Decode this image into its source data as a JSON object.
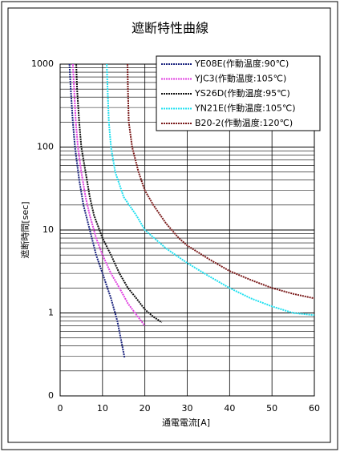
{
  "chart_data": {
    "type": "line",
    "title": "遮断特性曲線",
    "xlabel": "通電電流[A]",
    "ylabel": "遮断時間[sec]",
    "xlim": [
      0,
      60
    ],
    "xticks": [
      0,
      10,
      20,
      30,
      40,
      50,
      60
    ],
    "ylim": [
      0.1,
      1000
    ],
    "yticks": [
      {
        "value": 0.1,
        "label": "0"
      },
      1,
      10,
      100,
      1000
    ],
    "log_y": true,
    "grid": true,
    "legend": "upper right",
    "series": [
      {
        "name": "YE08E(作動温度:90℃)",
        "color": "#1a237e",
        "x": [
          2.2,
          2.5,
          3,
          3.5,
          4.5,
          5.5,
          7,
          8.5,
          10,
          12,
          13.5,
          15.2
        ],
        "values": [
          1000,
          500,
          200,
          100,
          40,
          20,
          10,
          5,
          3,
          1.5,
          0.8,
          0.29
        ]
      },
      {
        "name": "YJC3(作動温度:105℃)",
        "color": "#e040e0",
        "x": [
          3,
          3.3,
          3.7,
          4.2,
          5,
          6,
          7,
          8.5,
          10,
          12,
          14,
          16,
          18,
          20
        ],
        "values": [
          1000,
          500,
          200,
          100,
          50,
          25,
          15,
          8,
          5,
          3,
          2,
          1.3,
          0.95,
          0.7
        ]
      },
      {
        "name": "YS26D(作動温度:95℃)",
        "color": "#111111",
        "x": [
          3.8,
          4,
          4.5,
          5,
          6,
          7,
          8,
          10,
          12,
          14,
          16,
          18,
          20,
          22,
          24
        ],
        "values": [
          1000,
          500,
          200,
          100,
          50,
          25,
          15,
          8,
          5,
          3,
          2,
          1.5,
          1.1,
          0.9,
          0.77
        ]
      },
      {
        "name": "YN21E(作動温度:105℃)",
        "color": "#22e0f0",
        "x": [
          11,
          11.2,
          11.5,
          12,
          13,
          15,
          18,
          20,
          25,
          30,
          35,
          40,
          45,
          50,
          55,
          60
        ],
        "values": [
          1000,
          500,
          200,
          100,
          50,
          25,
          15,
          10,
          6,
          4,
          2.8,
          2,
          1.5,
          1.2,
          1.0,
          0.94
        ]
      },
      {
        "name": "B20-2(作動温度:120℃)",
        "color": "#7a1a1a",
        "x": [
          15.9,
          16,
          16.2,
          17,
          18.5,
          20,
          22,
          25,
          28,
          30,
          35,
          40,
          45,
          50,
          55,
          60
        ],
        "values": [
          1000,
          500,
          200,
          100,
          50,
          30,
          20,
          12,
          8,
          6.5,
          4.5,
          3.2,
          2.5,
          2,
          1.7,
          1.5
        ]
      }
    ]
  }
}
